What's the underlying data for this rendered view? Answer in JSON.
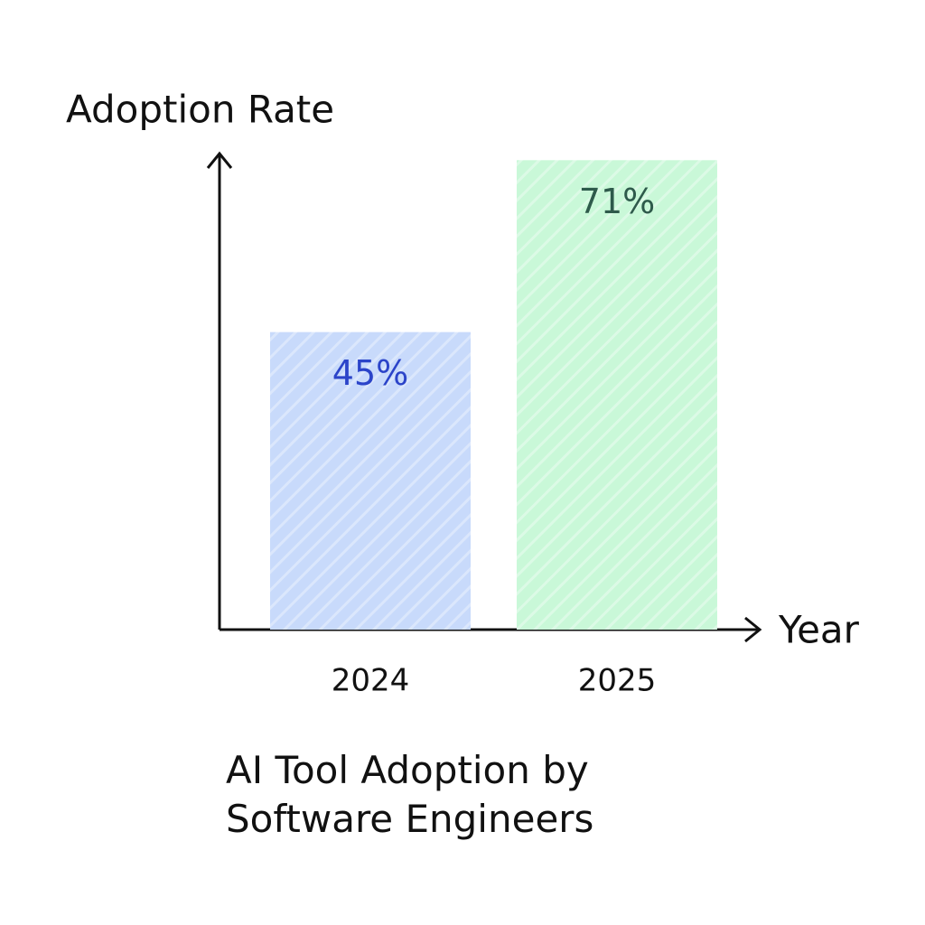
{
  "chart_data": {
    "type": "bar",
    "title": "AI Tool Adoption by Software Engineers",
    "y_label": "Adoption Rate",
    "x_label": "Year",
    "categories": [
      "2024",
      "2025"
    ],
    "values": [
      45,
      71
    ],
    "value_labels": [
      "45%",
      "71%"
    ],
    "colors": [
      "#c8dafb",
      "#c9f8d8"
    ],
    "label_colors": [
      "#2b44c9",
      "#2e5a4b"
    ],
    "ylim": [
      0,
      72
    ]
  }
}
